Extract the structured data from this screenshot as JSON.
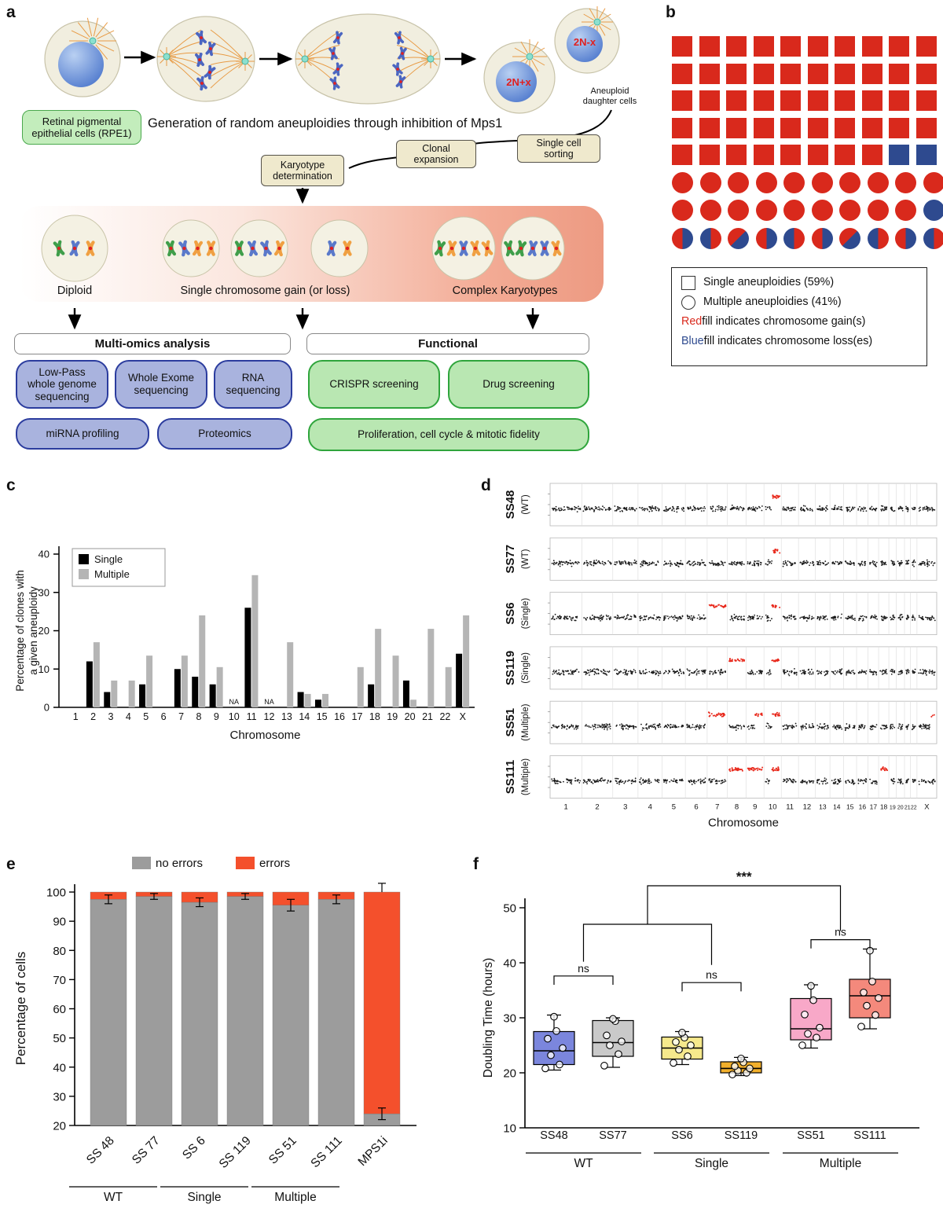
{
  "labels": {
    "a": "a",
    "b": "b",
    "c": "c",
    "d": "d",
    "e": "e",
    "f": "f"
  },
  "colors": {
    "red": "#d9291c",
    "blue": "#2e4a8f",
    "single_bar": "#000000",
    "multiple_bar": "#b5b5b5",
    "no_errors": "#9c9c9c",
    "errors": "#f4502c"
  },
  "panel_a": {
    "title": "Generation of random aneuploidies through inhibition of Mps1",
    "rpe1_box": "Retinal pigmental epithelial cells (RPE1)",
    "daughter_gain_label": "2N+x",
    "daughter_loss_label": "2N-x",
    "daughter_caption": "Aneuploid daughter cells",
    "steps": {
      "karyotype": "Karyotype determination",
      "clonal": "Clonal expansion",
      "sorting": "Single cell sorting"
    },
    "strip_groups": {
      "diploid": "Diploid",
      "single": "Single chromosome gain (or loss)",
      "complex": "Complex Karyotypes"
    },
    "strip_cells": [
      {
        "chromosomes": [
          "green",
          "blue",
          "orange"
        ]
      },
      {
        "chromosomes": [
          "green",
          "blue",
          "orange",
          "orange"
        ]
      },
      {
        "chromosomes": [
          "green",
          "blue",
          "blue",
          "orange"
        ]
      },
      {
        "chromosomes": [
          "blue",
          "orange"
        ]
      },
      {
        "chromosomes": [
          "green",
          "orange",
          "blue",
          "orange",
          "orange"
        ]
      },
      {
        "chromosomes": [
          "green",
          "green",
          "blue",
          "blue",
          "orange"
        ]
      }
    ],
    "headers": {
      "omics": "Multi-omics analysis",
      "functional": "Functional"
    },
    "omics_boxes": [
      "Low-Pass whole genome sequencing",
      "Whole Exome sequencing",
      "RNA sequencing",
      "miRNA profiling",
      "Proteomics"
    ],
    "functional_boxes": [
      "CRISPR screening",
      "Drug screening",
      "Proliferation, cell cycle & mitotic fidelity"
    ]
  },
  "panel_b": {
    "rows": [
      {
        "shape": "square",
        "fills": "RRRRRRRRRR"
      },
      {
        "shape": "square",
        "fills": "RRRRRRRRRR"
      },
      {
        "shape": "square",
        "fills": "RRRRRRRRRR"
      },
      {
        "shape": "square",
        "fills": "RRRRRRRRRR"
      },
      {
        "shape": "square",
        "fills": "RRRRRRRRBB"
      },
      {
        "shape": "circle",
        "fills": "RRRRRRRRRR"
      },
      {
        "shape": "circle",
        "fills": "RRRRRRRRRB"
      },
      {
        "shape": "circle",
        "fills": "HHHHHHHHHH"
      }
    ],
    "legend": {
      "square_label": "Single aneuploidies (59%)",
      "circle_label": "Multiple aneuploidies (41%)",
      "red_word": "Red",
      "red_rest": " fill indicates chromosome gain(s)",
      "blue_word": "Blue",
      "blue_rest": " fill indicates chromosome loss(es)"
    }
  },
  "chart_data": [
    {
      "panel": "c",
      "type": "bar",
      "xlabel": "Chromosome",
      "ylabel": "Percentage of clones with a given aneuploidy",
      "ylim": [
        0,
        40
      ],
      "yticks": [
        0,
        10,
        20,
        30,
        40
      ],
      "grid": false,
      "legend_position": "upper-left",
      "categories": [
        "1",
        "2",
        "3",
        "4",
        "5",
        "6",
        "7",
        "8",
        "9",
        "10",
        "11",
        "12",
        "13",
        "14",
        "15",
        "16",
        "17",
        "18",
        "19",
        "20",
        "21",
        "22",
        "X"
      ],
      "series": [
        {
          "name": "Single",
          "color": "#000000",
          "values": [
            0,
            12,
            4,
            0,
            6,
            0,
            10,
            8,
            6,
            null,
            26,
            null,
            0,
            4,
            2,
            0,
            0,
            6,
            0,
            7,
            0,
            0,
            14
          ]
        },
        {
          "name": "Multiple",
          "color": "#b5b5b5",
          "values": [
            0,
            17,
            7,
            7,
            13.5,
            0,
            13.5,
            24,
            10.5,
            null,
            34.5,
            null,
            17,
            3.5,
            3.5,
            0,
            10.5,
            20.5,
            13.5,
            2,
            20.5,
            10.5,
            24
          ]
        }
      ],
      "na_label": "NA"
    },
    {
      "panel": "d",
      "type": "scatter",
      "xlabel": "Chromosome",
      "gain_color": "#e8291c",
      "chromosomes": [
        {
          "name": "1",
          "len": 249
        },
        {
          "name": "2",
          "len": 243
        },
        {
          "name": "3",
          "len": 198
        },
        {
          "name": "4",
          "len": 190
        },
        {
          "name": "5",
          "len": 182
        },
        {
          "name": "6",
          "len": 171
        },
        {
          "name": "7",
          "len": 159
        },
        {
          "name": "8",
          "len": 146
        },
        {
          "name": "9",
          "len": 141
        },
        {
          "name": "10",
          "len": 136
        },
        {
          "name": "11",
          "len": 135
        },
        {
          "name": "12",
          "len": 133
        },
        {
          "name": "13",
          "len": 114
        },
        {
          "name": "14",
          "len": 107
        },
        {
          "name": "15",
          "len": 102
        },
        {
          "name": "16",
          "len": 90
        },
        {
          "name": "17",
          "len": 83
        },
        {
          "name": "18",
          "len": 80
        },
        {
          "name": "19",
          "len": 59
        },
        {
          "name": "20",
          "len": 64
        },
        {
          "name": "21",
          "len": 47
        },
        {
          "name": "22",
          "len": 51
        },
        {
          "name": "X",
          "len": 155
        }
      ],
      "samples": [
        {
          "name": "SS48",
          "group": "(WT)",
          "label_color": "#6b7ed9",
          "gains": [
            {
              "chr": "10",
              "from": 0.45,
              "to": 1
            }
          ]
        },
        {
          "name": "SS77",
          "group": "(WT)",
          "label_color": "#8c8c8c",
          "gains": [
            {
              "chr": "10",
              "from": 0.45,
              "to": 1
            }
          ]
        },
        {
          "name": "SS6",
          "group": "(Single)",
          "label_color": "#c7a122",
          "gains": [
            {
              "chr": "7",
              "from": 0,
              "to": 1
            },
            {
              "chr": "10",
              "from": 0.45,
              "to": 1
            }
          ]
        },
        {
          "name": "SS119",
          "group": "(Single)",
          "label_color": "#e09110",
          "gains": [
            {
              "chr": "8",
              "from": 0,
              "to": 1
            },
            {
              "chr": "10",
              "from": 0.45,
              "to": 1
            }
          ]
        },
        {
          "name": "SS51",
          "group": "(Multiple)",
          "label_color": "#ef6fa7",
          "gains": [
            {
              "chr": "7",
              "from": 0,
              "to": 1
            },
            {
              "chr": "9",
              "from": 0.5,
              "to": 1
            },
            {
              "chr": "10",
              "from": 0.45,
              "to": 1
            },
            {
              "chr": "X",
              "from": 0.75,
              "to": 1
            }
          ]
        },
        {
          "name": "SS111",
          "group": "(Multiple)",
          "label_color": "#d9291c",
          "gains": [
            {
              "chr": "8",
              "from": 0,
              "to": 1
            },
            {
              "chr": "9",
              "from": 0,
              "to": 1
            },
            {
              "chr": "10",
              "from": 0.45,
              "to": 1
            },
            {
              "chr": "18",
              "from": 0,
              "to": 1
            }
          ]
        }
      ]
    },
    {
      "panel": "e",
      "type": "stacked-bar",
      "ylabel": "Percentage of cells",
      "ylim": [
        20,
        100
      ],
      "yticks": [
        20,
        30,
        40,
        50,
        60,
        70,
        80,
        90,
        100
      ],
      "legend": [
        {
          "name": "no errors",
          "color": "#9c9c9c"
        },
        {
          "name": "errors",
          "color": "#f4502c"
        }
      ],
      "categories": [
        "SS 48",
        "SS 77",
        "SS 6",
        "SS 119",
        "SS 51",
        "SS 111",
        "MPS1i"
      ],
      "series": [
        {
          "name": "no errors",
          "values": [
            97.5,
            98.5,
            96.5,
            98.5,
            95.5,
            97.5,
            24
          ]
        },
        {
          "name": "errors",
          "values": [
            2.5,
            1.5,
            3.5,
            1.5,
            4.5,
            2.5,
            76
          ]
        }
      ],
      "error_bars": [
        1.5,
        1,
        1.5,
        1,
        2,
        1.5,
        2
      ],
      "top_error": {
        "category": "MPS1i",
        "err": 3
      },
      "groups": [
        {
          "label": "WT",
          "span": [
            0,
            1
          ]
        },
        {
          "label": "Single",
          "span": [
            2,
            3
          ]
        },
        {
          "label": "Multiple",
          "span": [
            4,
            5
          ]
        }
      ]
    },
    {
      "panel": "f",
      "type": "box",
      "ylabel": "Doubling Time (hours)",
      "ylim": [
        10,
        50
      ],
      "yticks": [
        10,
        20,
        30,
        40,
        50
      ],
      "boxes": [
        {
          "label": "SS48",
          "color": "#7b86dd",
          "whisker_low": 20.5,
          "q1": 21.5,
          "median": 24,
          "q3": 27.5,
          "whisker_high": 30.5,
          "points": [
            20.8,
            21.5,
            23.2,
            24.5,
            26.2,
            27.6,
            30.2
          ]
        },
        {
          "label": "SS77",
          "color": "#c9c9c9",
          "whisker_low": 21,
          "q1": 23,
          "median": 25.5,
          "q3": 29.5,
          "whisker_high": 30,
          "points": [
            21.3,
            23.4,
            25,
            25.7,
            26.8,
            29.4,
            29.8
          ]
        },
        {
          "label": "SS6",
          "color": "#f6e98c",
          "whisker_low": 21.5,
          "q1": 22.5,
          "median": 24.5,
          "q3": 26.5,
          "whisker_high": 27.5,
          "points": [
            21.8,
            23,
            24.2,
            25,
            25.6,
            26.4,
            27.3
          ]
        },
        {
          "label": "SS119",
          "color": "#f2b02c",
          "whisker_low": 19.5,
          "q1": 20,
          "median": 20.8,
          "q3": 22,
          "whisker_high": 22.8,
          "points": [
            19.7,
            20,
            20.4,
            20.8,
            21.2,
            21.9,
            22.6
          ]
        },
        {
          "label": "SS51",
          "color": "#f8a8c8",
          "whisker_low": 24.5,
          "q1": 26,
          "median": 28,
          "q3": 33.5,
          "whisker_high": 36,
          "points": [
            25,
            26.4,
            27.1,
            28.2,
            30.6,
            33.2,
            35.8
          ]
        },
        {
          "label": "SS111",
          "color": "#f4897c",
          "whisker_low": 28,
          "q1": 30,
          "median": 34,
          "q3": 37,
          "whisker_high": 42.5,
          "points": [
            28.4,
            30.5,
            32.2,
            33.6,
            34.6,
            36.6,
            42.2
          ]
        }
      ],
      "groups": [
        {
          "label": "WT",
          "members": [
            0,
            1
          ]
        },
        {
          "label": "Single",
          "members": [
            2,
            3
          ]
        },
        {
          "label": "Multiple",
          "members": [
            4,
            5
          ]
        }
      ],
      "significance": {
        "top": "***",
        "pairs": [
          "ns",
          "ns",
          "ns"
        ]
      }
    }
  ]
}
